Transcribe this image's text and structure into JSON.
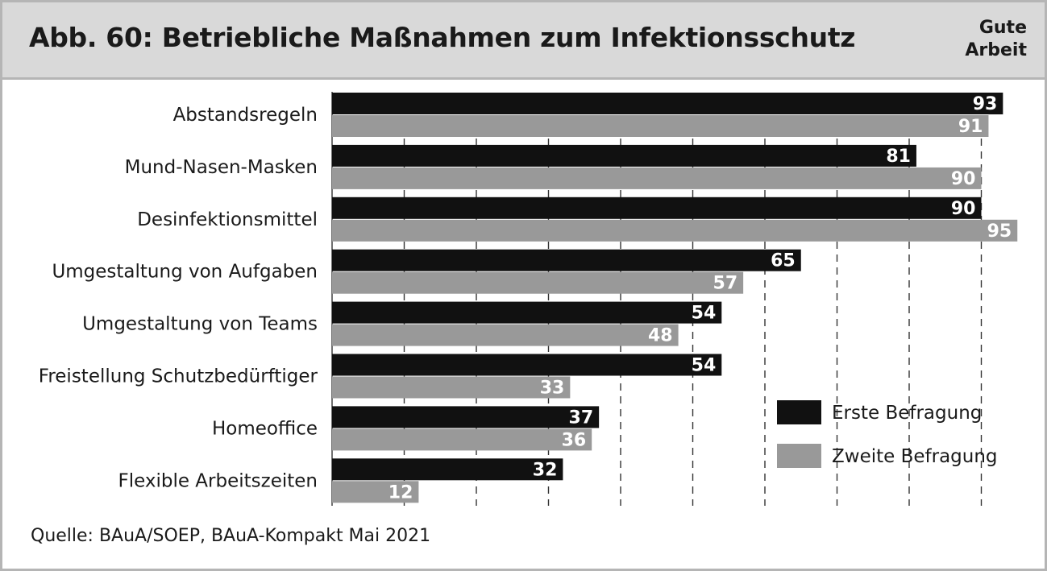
{
  "title": "Abb. 60: Betriebliche Maßnahmen zum Infektionsschutz",
  "brand": {
    "line1": "Gute",
    "line2": "Arbeit"
  },
  "source": "Quelle: BAuA/SOEP, BAuA-Kompakt Mai 2021",
  "colors": {
    "series1": "#111111",
    "series2": "#999999",
    "header_bg": "#d9d9d9",
    "frame": "#b5b5b5"
  },
  "chart_data": {
    "type": "bar",
    "orientation": "horizontal",
    "categories": [
      "Abstandsregeln",
      "Mund-Nasen-Masken",
      "Desinfektionsmittel",
      "Umgestaltung von Aufgaben",
      "Umgestaltung von Teams",
      "Freistellung Schutzbedürftiger",
      "Homeoffice",
      "Flexible Arbeitszeiten"
    ],
    "series": [
      {
        "name": "Erste Befragung",
        "values": [
          93,
          81,
          90,
          65,
          54,
          54,
          37,
          32
        ]
      },
      {
        "name": "Zweite Befragung",
        "values": [
          91,
          90,
          95,
          57,
          48,
          33,
          36,
          12
        ]
      }
    ],
    "xlim": [
      0,
      100
    ],
    "gridlines": [
      10,
      20,
      30,
      40,
      50,
      60,
      70,
      80,
      90
    ],
    "grid": true,
    "legend_position": "bottom-right"
  }
}
